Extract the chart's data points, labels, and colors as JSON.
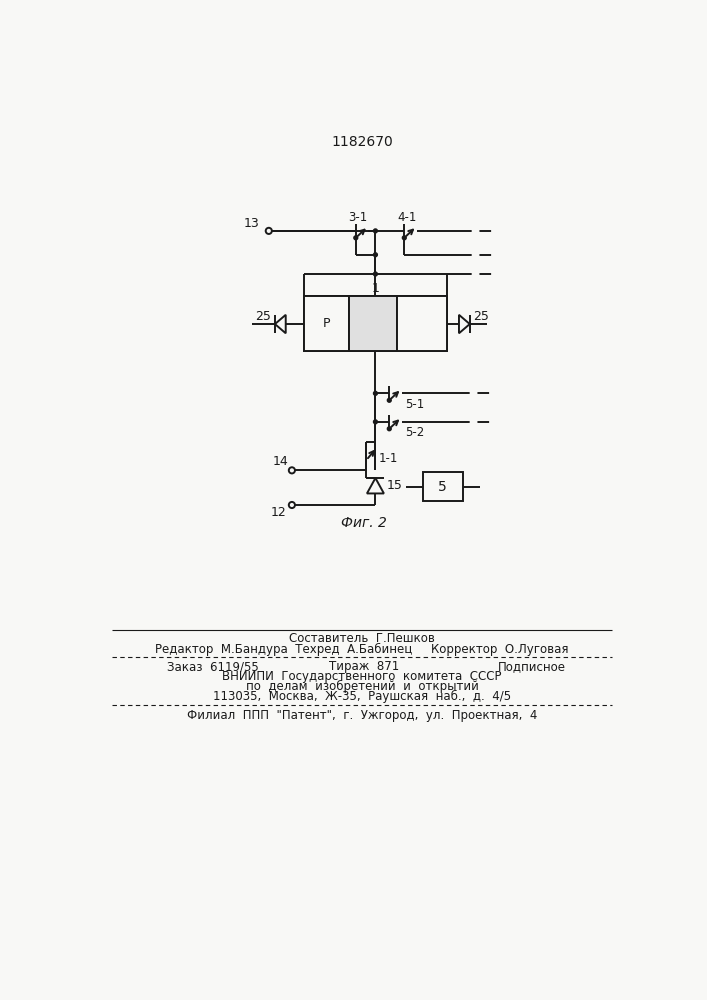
{
  "title": "1182670",
  "fig_label": "Фиг. 2",
  "bg_color": "#f8f8f6",
  "line_color": "#1a1a1a",
  "line_width": 1.4,
  "footer_line1": "Составитель  Г.Пешков",
  "footer_line2": "Редактор  М.Бандура  Техред  А.Бабинец     Корректор  О.Луговая",
  "footer_line3a": "Заказ  6119/55",
  "footer_line3b": "Тираж  871",
  "footer_line3c": "Подписное",
  "footer_line4": "ВНИИПИ  Государственного  комитета  СССР",
  "footer_line5": "по  делам  изобретений  и  открытий",
  "footer_line6": "113035,  Москва,  Ж-35,  Раушская  наб.,  д.  4/5",
  "footer_line7": "Филиал  ППП  \"Патент\",  г.  Ужгород,  ул.  Проектная,  4"
}
